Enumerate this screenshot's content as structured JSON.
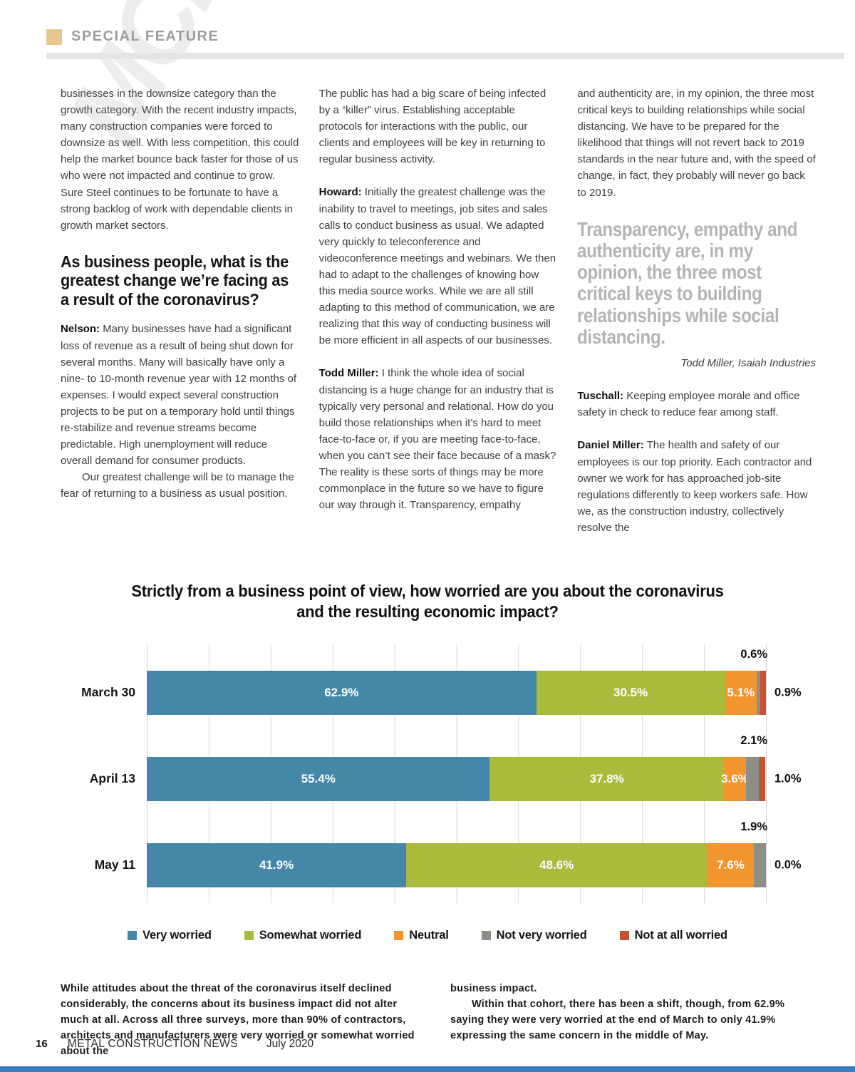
{
  "header": {
    "section_label": "SPECIAL FEATURE",
    "watermark": "MCN"
  },
  "article": {
    "col1": {
      "p1": "businesses in the downsize category than the growth category. With the recent industry impacts, many construction companies were forced to downsize as well. With less competition, this could help the market bounce back faster for those of us who were not impacted and continue to grow. Sure Steel continues to be fortunate to have a strong backlog of work with dependable clients in growth market sectors.",
      "heading": "As business people, what is the greatest change we’re facing as a result of the coronavirus?",
      "p2_lead": "Nelson:",
      "p2": "Many businesses have had a significant loss of revenue as a result of being shut down for several months. Many will basically have only a nine- to 10-month revenue year with 12 months of expenses. I would expect several construction projects to be put on a temporary hold until things re-stabilize and revenue streams become predictable. High unemployment will reduce overall demand for consumer products.",
      "p3": "Our greatest challenge will be to manage the fear of returning to a business as usual position."
    },
    "col2": {
      "p1": "The public has had a big scare of being infected by a “killer” virus. Establishing acceptable protocols for interactions with the public, our clients and employees will be key in returning to regular business activity.",
      "p2_lead": "Howard:",
      "p2": "Initially the greatest challenge was the inability to travel to meetings, job sites and sales calls to conduct business as usual. We adapted very quickly to teleconference and videoconference meetings and webinars. We then had to adapt to the challenges of knowing how this media source works. While we are all still adapting to this method of communication, we are realizing that this way of conducting business will be more efficient in all aspects of our businesses.",
      "p3_lead": "Todd Miller:",
      "p3": "I think the whole idea of social distancing is a huge change for an industry that is typically very personal and relational. How do you build those relationships when it’s hard to meet face-to-face or, if you are meeting face-to-face, when you can’t see their face because of a mask? The reality is these sorts of things may be more commonplace in the future so we have to figure our way through it. Transparency, empathy"
    },
    "col3": {
      "p1": "and authenticity are, in my opinion, the three most critical keys to building relationships while social distancing. We have to be prepared for the likelihood that things will not revert back to 2019 standards in the near future and, with the speed of change, in fact, they probably will never go back to 2019.",
      "pull_quote": "Transparency, empathy and authenticity are, in my opinion, the three most critical keys to building relationships while social distancing.",
      "pull_quote_attribution": "Todd Miller, Isaiah Industries",
      "p2_lead": "Tuschall:",
      "p2": "Keeping employee morale and office safety in check to reduce fear among staff.",
      "p3_lead": "Daniel Miller:",
      "p3": "The health and safety of our employees is our top priority. Each contractor and owner we work for has approached job-site regulations differently to keep workers safe. How we, as the construction industry, collectively resolve the"
    }
  },
  "chart_data": {
    "type": "bar",
    "variant": "stacked-horizontal",
    "title": "Strictly from a business point of view, how worried are you about the coronavirus and the resulting economic impact?",
    "categories": [
      "March 30",
      "April 13",
      "May 11"
    ],
    "series": [
      {
        "name": "Very worried",
        "color": "#4487a9",
        "label_placement": "inside",
        "values": [
          62.9,
          55.4,
          41.9
        ]
      },
      {
        "name": "Somewhat worried",
        "color": "#a9ba3c",
        "label_placement": "inside",
        "values": [
          30.5,
          37.8,
          48.6
        ]
      },
      {
        "name": "Neutral",
        "color": "#f2952e",
        "label_placement": "inside",
        "values": [
          5.1,
          3.6,
          7.6
        ]
      },
      {
        "name": "Not very worried",
        "color": "#8e8e88",
        "label_placement": "above",
        "values": [
          0.6,
          2.1,
          1.9
        ]
      },
      {
        "name": "Not at all worried",
        "color": "#c65330",
        "label_placement": "side",
        "values": [
          0.9,
          1.0,
          0.0
        ]
      }
    ],
    "xlim": [
      0,
      100
    ],
    "gridlines": "vertical every 10%",
    "legend_position": "bottom"
  },
  "caption": {
    "left": "While attitudes about the threat of the coronavirus itself declined considerably, the concerns about its business impact did not alter much at all. Across all three surveys, more than 90% of contractors, architects and manufacturers were very worried or somewhat worried about the",
    "right_p1": "business impact.",
    "right_p2": "Within that cohort, there has been a shift, though, from 62.9% saying they were very worried at the end of March to only 41.9% expressing the same concern in the middle of May."
  },
  "footer": {
    "page_number": "16",
    "publication": "METAL CONSTRUCTION NEWS",
    "issue": "July 2020"
  }
}
